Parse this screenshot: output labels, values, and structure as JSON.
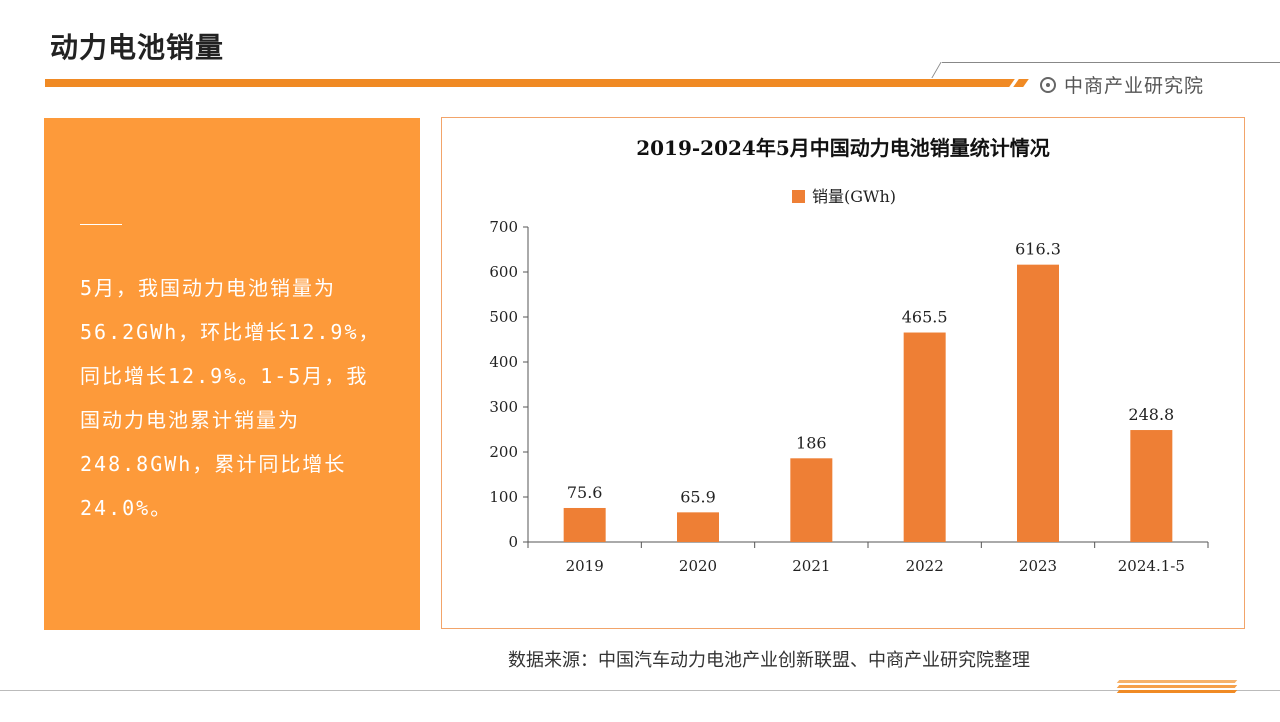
{
  "page": {
    "title": "动力电池销量"
  },
  "brand": {
    "name": "中商产业研究院"
  },
  "summary": {
    "text": "5月，我国动力电池销量为56.2GWh，环比增长12.9%，同比增长12.9%。1-5月，我国动力电池累计销量为248.8GWh，累计同比增长24.0%。"
  },
  "source": {
    "text": "数据来源：中国汽车动力电池产业创新联盟、中商产业研究院整理"
  },
  "colors": {
    "accent": "#f08a24",
    "panel": "#fd9a3a",
    "bar": "#ee7f35"
  },
  "chart_data": {
    "type": "bar",
    "title": "2019-2024年5月中国动力电池销量统计情况",
    "categories": [
      "2019",
      "2020",
      "2021",
      "2022",
      "2023",
      "2024.1-5"
    ],
    "series": [
      {
        "name": "销量(GWh)",
        "values": [
          75.6,
          65.9,
          186,
          465.5,
          616.3,
          248.8
        ]
      }
    ],
    "value_labels": [
      "75.6",
      "65.9",
      "186",
      "465.5",
      "616.3",
      "248.8"
    ],
    "ylim": [
      0,
      700
    ],
    "yticks": [
      "0",
      "100",
      "200",
      "300",
      "400",
      "500",
      "600",
      "700"
    ],
    "legend_position": "top",
    "grid": false
  }
}
